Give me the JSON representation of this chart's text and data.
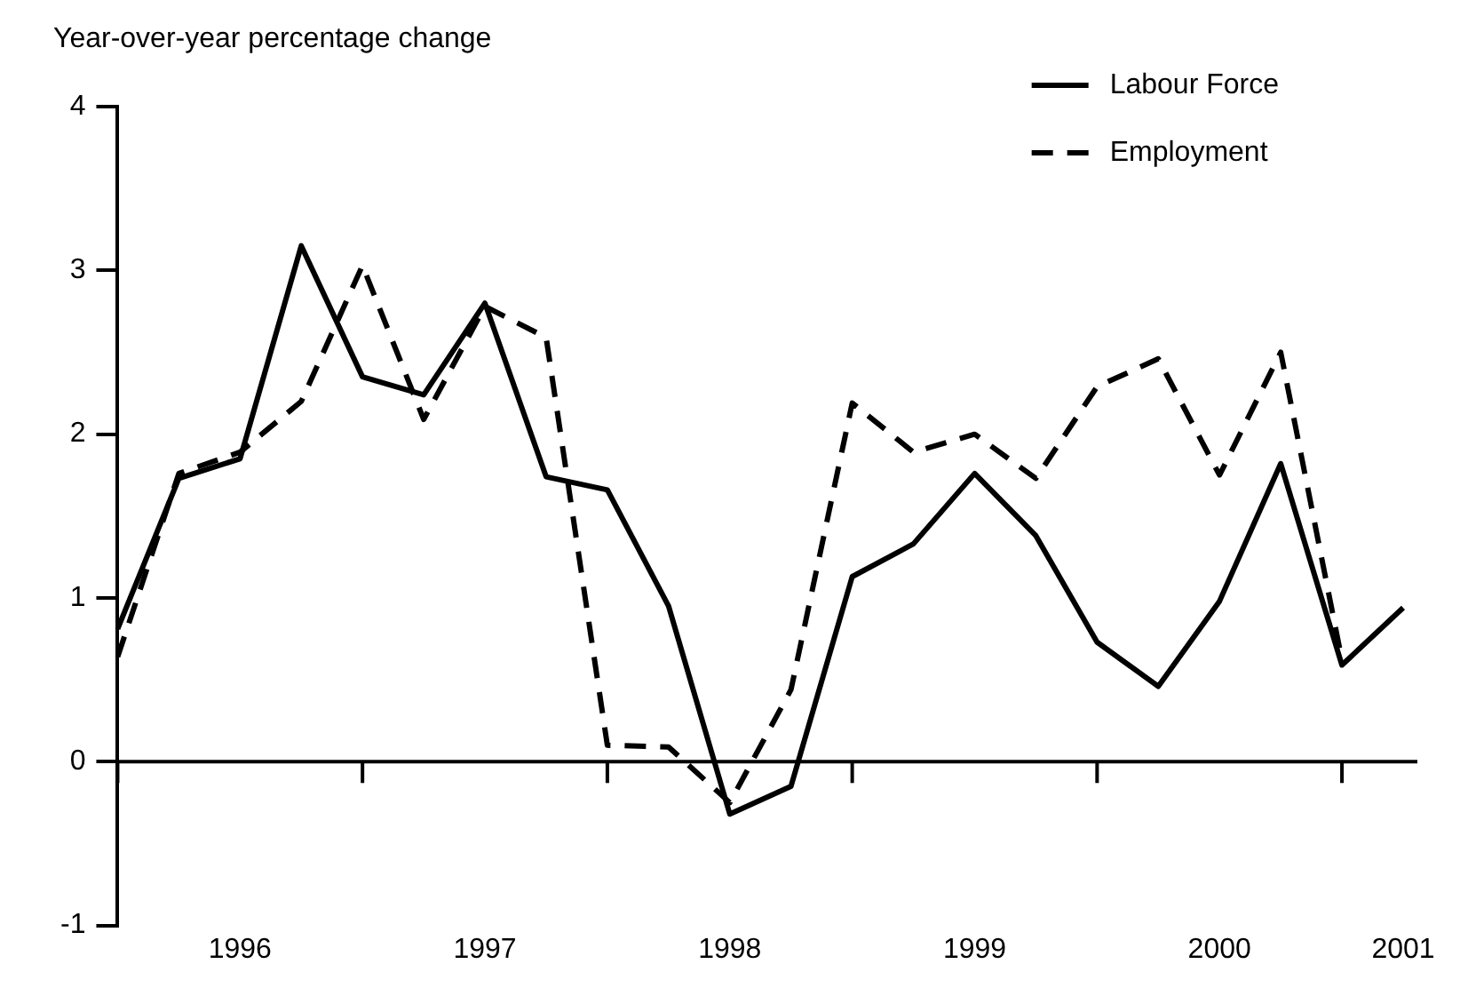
{
  "chart_data": {
    "type": "line",
    "ylabel": "Year-over-year percentage change",
    "categories": [
      null,
      null,
      "1996",
      null,
      null,
      null,
      "1997",
      null,
      null,
      null,
      "1998",
      null,
      null,
      null,
      "1999",
      null,
      null,
      null,
      "2000",
      null,
      null,
      "2001"
    ],
    "series": [
      {
        "name": "Labour Force",
        "color": "#000000",
        "line_style": "solid",
        "values": [
          0.81,
          1.73,
          1.85,
          3.15,
          2.35,
          2.24,
          2.8,
          1.74,
          1.66,
          0.95,
          -0.32,
          -0.15,
          1.13,
          1.33,
          1.76,
          1.38,
          0.73,
          0.46,
          0.98,
          1.82,
          0.59,
          0.94
        ]
      },
      {
        "name": "Employment",
        "color": "#000000",
        "line_style": "dashed",
        "values": [
          0.64,
          1.76,
          1.89,
          2.2,
          3.03,
          2.09,
          2.78,
          2.59,
          0.1,
          0.09,
          -0.25,
          0.44,
          2.19,
          1.89,
          2.0,
          1.73,
          2.29,
          2.46,
          1.75,
          2.5,
          0.62,
          null
        ]
      }
    ],
    "ylim": [
      -1,
      4
    ],
    "yticks": [
      -1,
      0,
      1,
      2,
      3,
      4
    ],
    "legend": "top right",
    "marker": "none"
  }
}
